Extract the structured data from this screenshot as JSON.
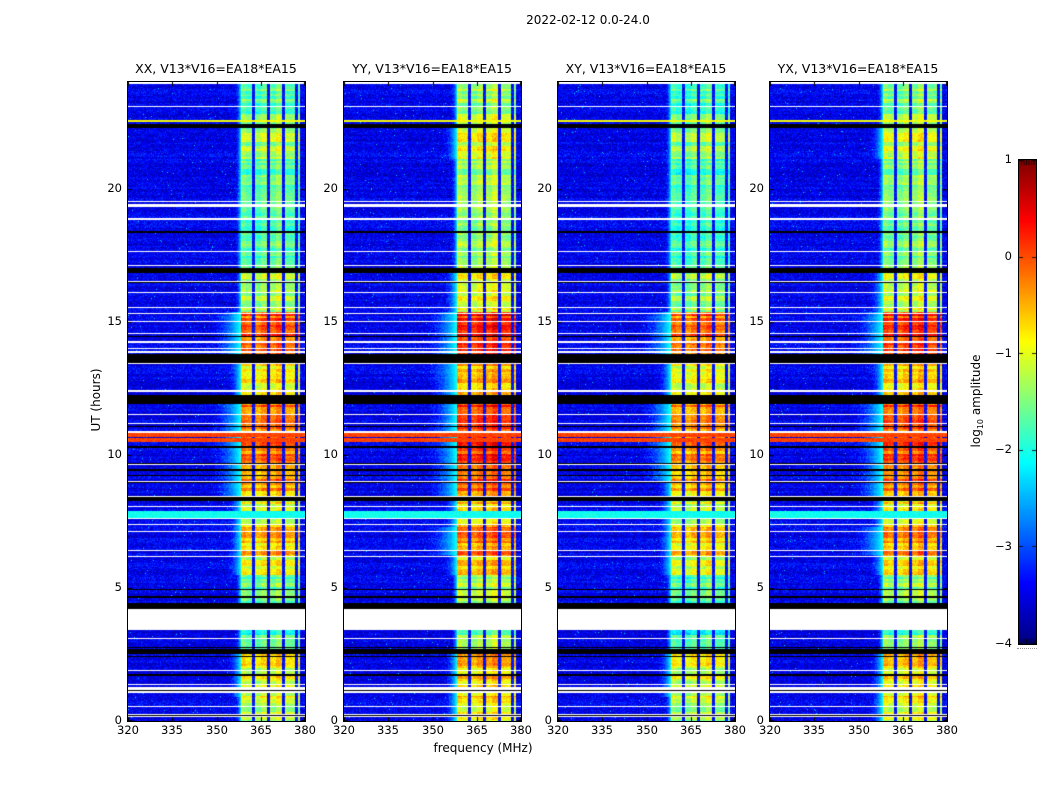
{
  "chart_data": {
    "type": "heatmap",
    "title": "2022-02-12 0.0-24.0",
    "panels": [
      {
        "title": "XX, V13*V16=EA18*EA15",
        "band_gain": 0.0
      },
      {
        "title": "YY, V13*V16=EA18*EA15",
        "band_gain": 0.32
      },
      {
        "title": "XY, V13*V16=EA18*EA15",
        "band_gain": -0.12
      },
      {
        "title": "YX, V13*V16=EA18*EA15",
        "band_gain": 0.18
      }
    ],
    "x_axis": {
      "label": "frequency (MHz)",
      "range": [
        320,
        380
      ],
      "ticks": [
        "320",
        "335",
        "350",
        "365",
        "380"
      ],
      "tick_values": [
        320,
        335,
        350,
        365,
        380
      ]
    },
    "y_axis": {
      "label": "UT (hours)",
      "range": [
        0,
        24
      ],
      "ticks": [
        "0",
        "5",
        "10",
        "15",
        "20"
      ],
      "tick_values": [
        0,
        5,
        10,
        15,
        20
      ]
    },
    "colorbar": {
      "label_prefix": "log",
      "label_sub": "10",
      "label_suffix": " amplitude",
      "range": [
        -4,
        1
      ],
      "ticks": [
        "1",
        "0",
        "−1",
        "−2",
        "−3",
        "−4"
      ],
      "tick_values": [
        1,
        0,
        -1,
        -2,
        -3,
        -4
      ],
      "colormap": "jet"
    },
    "spectrum": {
      "background_level": -3.78,
      "noise_spread": 0.65,
      "band": {
        "start_mhz": 358.3,
        "end_mhz": 378.4,
        "notch_mhz": [
          362.4,
          367.5,
          372.5,
          377.0
        ],
        "notch_level": -3.5
      },
      "band_time_profile": [
        [
          0.0,
          0.9,
          -1.1
        ],
        [
          0.9,
          2.7,
          -0.85
        ],
        [
          2.7,
          3.4,
          -1.7
        ],
        [
          3.4,
          4.2,
          -1.6
        ],
        [
          4.2,
          5.5,
          -1.45
        ],
        [
          5.5,
          6.25,
          -0.9
        ],
        [
          6.25,
          7.3,
          -0.5
        ],
        [
          7.3,
          8.3,
          -0.95
        ],
        [
          8.42,
          9.0,
          -0.45
        ],
        [
          9.0,
          11.95,
          -0.1
        ],
        [
          12.25,
          13.5,
          -0.7
        ],
        [
          13.8,
          15.35,
          0.0
        ],
        [
          15.35,
          16.85,
          -1.25
        ],
        [
          16.85,
          19.2,
          -1.5
        ],
        [
          19.2,
          21.1,
          -1.55
        ],
        [
          21.1,
          22.3,
          -1.2
        ],
        [
          22.3,
          24.0,
          -1.55
        ]
      ],
      "default_band_level": -1.45,
      "features": {
        "black_gaps_hours": [
          [
            22.32,
            22.44
          ],
          [
            16.88,
            17.02
          ],
          [
            13.5,
            13.8
          ],
          [
            11.95,
            12.25
          ],
          [
            8.3,
            8.42
          ],
          [
            4.25,
            4.45
          ],
          [
            2.55,
            2.7
          ]
        ],
        "white_gaps_hours": [
          [
            3.45,
            4.2
          ]
        ],
        "red_lines_hours": [
          [
            10.52,
            10.62
          ],
          [
            10.72,
            10.8
          ]
        ],
        "red_line_level": 0.05,
        "yellow_lines_hours": [
          [
            22.52,
            22.58
          ]
        ],
        "yellow_line_level": -0.9,
        "cyan_wash_hours": [
          [
            7.68,
            7.9
          ]
        ],
        "cyan_wash_level": -2.05,
        "random_white_prob": 0.155,
        "random_black_prob": 0.055
      }
    }
  }
}
